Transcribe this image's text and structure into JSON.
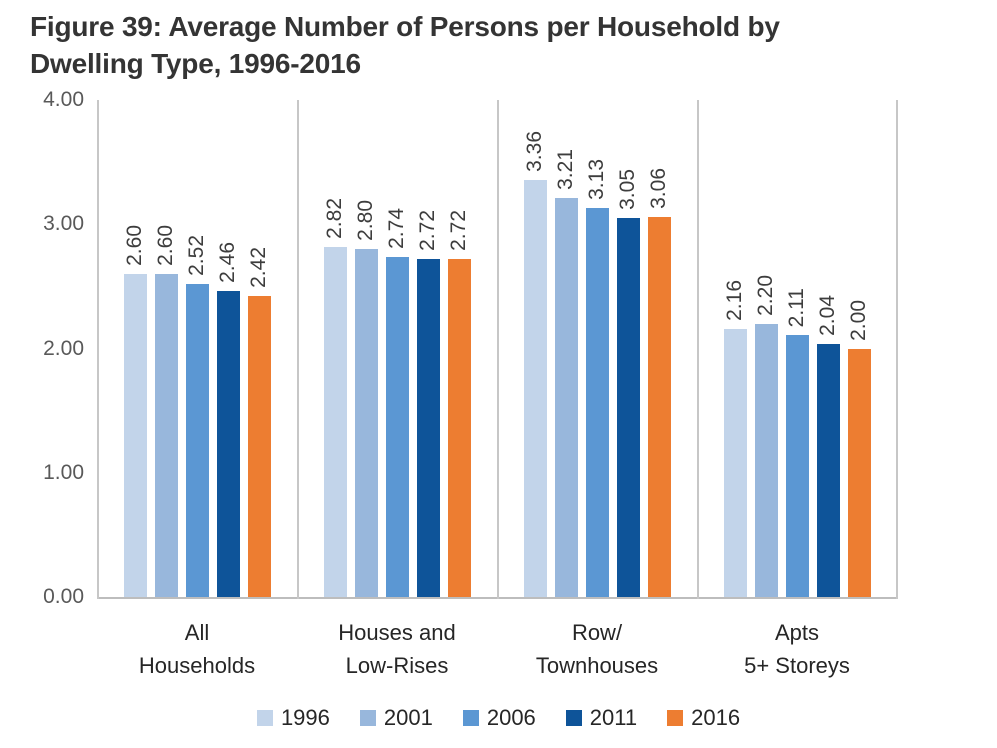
{
  "title": {
    "lines": [
      "Figure 39: Average Number of Persons per Household by",
      "Dwelling Type, 1996-2016"
    ]
  },
  "chart_data": {
    "type": "bar",
    "title": "Figure 39: Average Number of Persons per Household by Dwelling Type, 1996-2016",
    "categories": [
      {
        "key": "all-households",
        "lines": [
          "All",
          "Households"
        ]
      },
      {
        "key": "houses-low-rises",
        "lines": [
          "Houses and",
          "Low-Rises"
        ]
      },
      {
        "key": "row-townhouses",
        "lines": [
          "Row/",
          "Townhouses"
        ]
      },
      {
        "key": "apts-5plus-storeys",
        "lines": [
          "Apts",
          "5+ Storeys"
        ]
      }
    ],
    "series": [
      {
        "name": "1996",
        "color": "#c2d4ea",
        "values": [
          2.6,
          2.82,
          3.36,
          2.16
        ]
      },
      {
        "name": "2001",
        "color": "#98b7dc",
        "values": [
          2.6,
          2.8,
          3.21,
          2.2
        ]
      },
      {
        "name": "2006",
        "color": "#5b97d3",
        "values": [
          2.52,
          2.74,
          3.13,
          2.11
        ]
      },
      {
        "name": "2011",
        "color": "#0e5499",
        "values": [
          2.46,
          2.72,
          3.05,
          2.04
        ]
      },
      {
        "name": "2016",
        "color": "#ed7d31",
        "values": [
          2.42,
          2.72,
          3.06,
          2.0
        ]
      }
    ],
    "y_ticks": [
      {
        "label": "4.00",
        "value": 4
      },
      {
        "label": "3.00",
        "value": 3
      },
      {
        "label": "2.00",
        "value": 2
      },
      {
        "label": "1.00",
        "value": 1
      },
      {
        "label": "0.00",
        "value": 0
      }
    ],
    "ylim": [
      0,
      4
    ],
    "xlabel": "",
    "ylabel": "",
    "value_label_decimals": 2,
    "value_label_rotation": -90,
    "legend_position": "bottom",
    "grid": "vertical category separator lines only",
    "axis_line_color": "#bdbdbd"
  }
}
